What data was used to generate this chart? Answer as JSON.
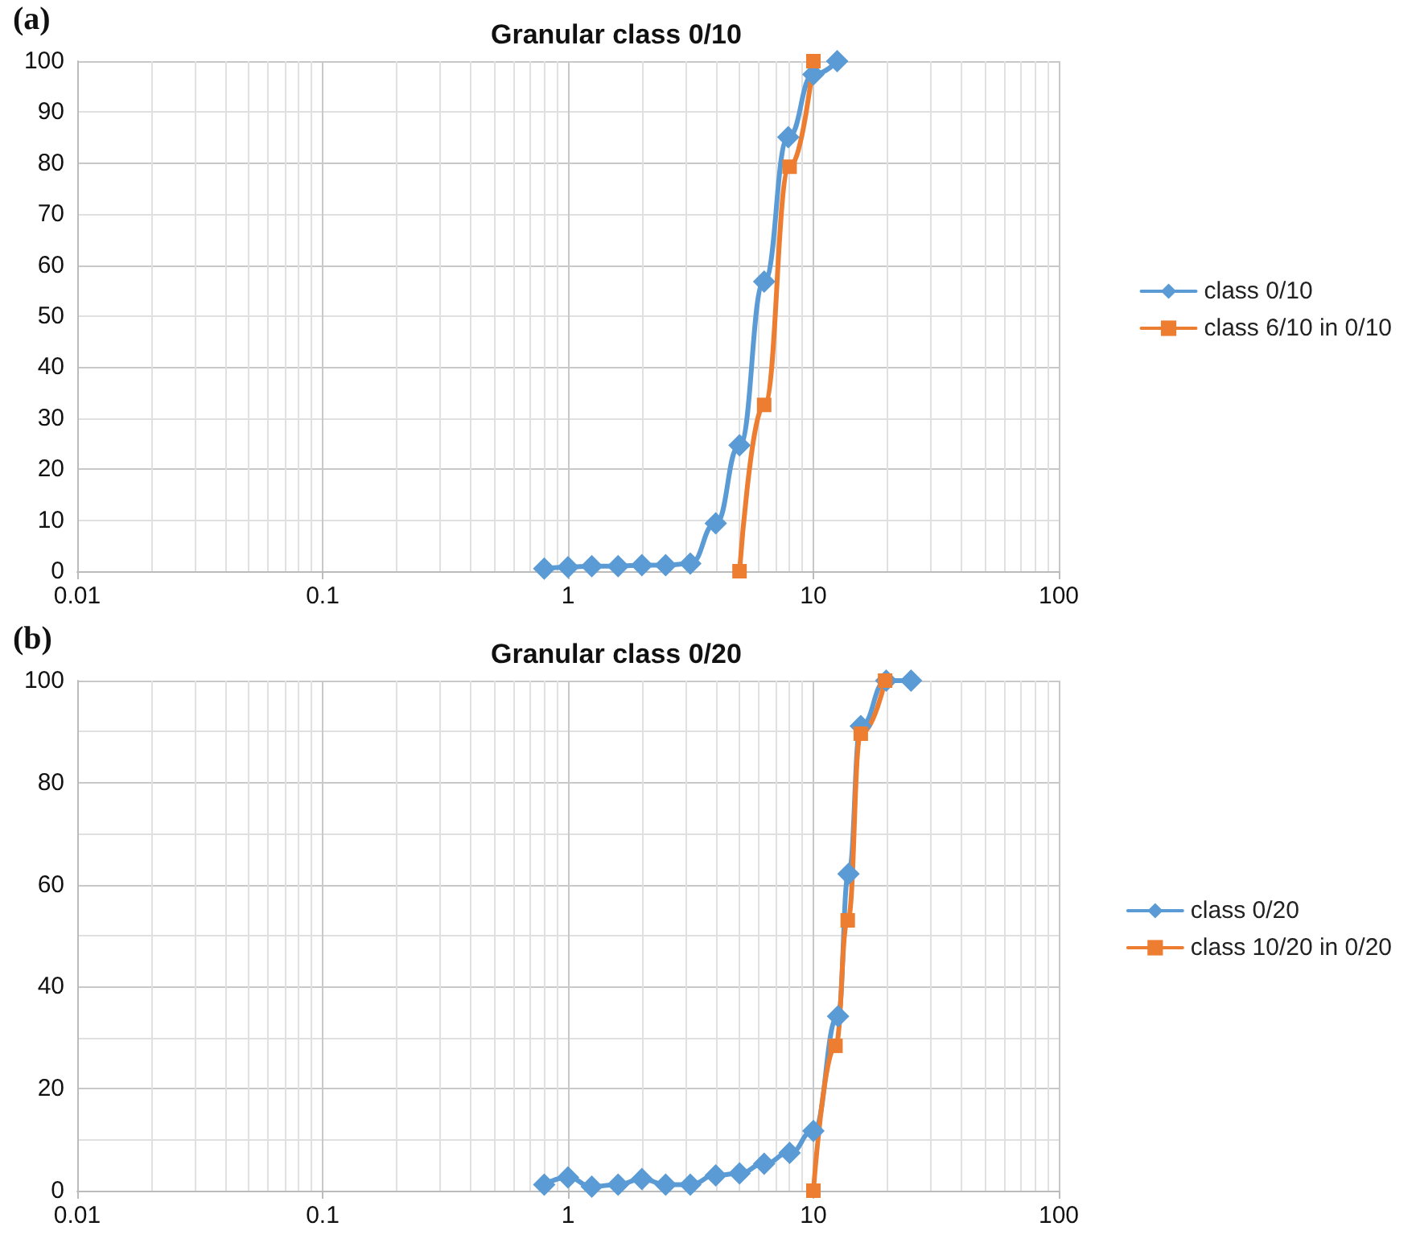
{
  "chart_data": [
    {
      "type": "line",
      "title": "Granular class 0/10",
      "annotations": [
        "(a)"
      ],
      "xlim": [
        0.01,
        100
      ],
      "xticks": [
        0.01,
        0.1,
        1,
        10,
        100
      ],
      "ylim": [
        0,
        100
      ],
      "yticks": [
        0,
        10,
        20,
        30,
        40,
        50,
        60,
        70,
        80,
        90,
        100
      ],
      "log": "x",
      "grid": true,
      "legend": "right",
      "series": [
        {
          "name": "class 0/10",
          "color": "#5b9bd5",
          "marker": "diamond",
          "x": [
            0.8,
            1.0,
            1.25,
            1.6,
            2.0,
            2.5,
            3.15,
            4.0,
            5.0,
            6.3,
            7.9,
            10,
            12.5
          ],
          "values": [
            0.5,
            0.8,
            1,
            1,
            1.2,
            1.2,
            1.5,
            9.4,
            24.7,
            56.8,
            85.1,
            97.4,
            100
          ]
        },
        {
          "name": "class 6/10 in 0/10",
          "color": "#ed7d31",
          "marker": "square",
          "x": [
            5.0,
            6.3,
            8.0,
            10
          ],
          "values": [
            0,
            32.6,
            79.3,
            100
          ]
        }
      ]
    },
    {
      "type": "line",
      "title": "Granular class 0/20",
      "annotations": [
        "(b)"
      ],
      "xlim": [
        0.01,
        100
      ],
      "xticks": [
        0.01,
        0.1,
        1,
        10,
        100
      ],
      "ylim": [
        0,
        100
      ],
      "yticks": [
        0,
        20,
        40,
        60,
        80,
        100
      ],
      "log": "x",
      "grid": true,
      "legend": "right",
      "series": [
        {
          "name": "class 0/20",
          "color": "#5b9bd5",
          "marker": "diamond",
          "x": [
            0.8,
            1.0,
            1.25,
            1.6,
            2.0,
            2.5,
            3.15,
            4.0,
            5.0,
            6.3,
            8.0,
            10,
            12.6,
            13.9,
            15.6,
            19.8,
            25
          ],
          "values": [
            1.2,
            2.6,
            0.8,
            1.2,
            2.3,
            1.2,
            1.2,
            3.0,
            3.4,
            5.3,
            7.4,
            11.7,
            34.2,
            62.1,
            91.1,
            100,
            100
          ]
        },
        {
          "name": "class 10/20 in 0/20",
          "color": "#ed7d31",
          "marker": "square",
          "x": [
            10,
            12.3,
            13.8,
            15.6,
            19.6
          ],
          "values": [
            0,
            28.4,
            53,
            89.6,
            100
          ]
        }
      ]
    }
  ]
}
